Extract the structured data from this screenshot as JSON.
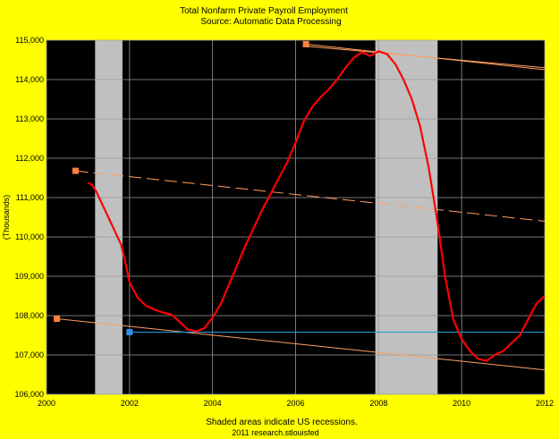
{
  "chart_data": {
    "type": "line",
    "title": "Total Nonfarm Private Payroll Employment",
    "subtitle": "Source: Automatic Data Processing",
    "ylabel": "(Thousands)",
    "xlabel": "",
    "footer_lines": [
      "Shaded areas indicate US recessions.",
      "2011 research.stlouisfed"
    ],
    "xlim": [
      2000,
      2012
    ],
    "ylim": [
      106000,
      115000
    ],
    "x_ticks": [
      2000,
      2002,
      2004,
      2006,
      2008,
      2010,
      2012
    ],
    "x_tick_labels": [
      "2000",
      "2002",
      "2004",
      "2006",
      "2008",
      "2010",
      "2012"
    ],
    "y_ticks": [
      106000,
      107000,
      108000,
      109000,
      110000,
      111000,
      112000,
      113000,
      114000,
      115000
    ],
    "y_tick_labels": [
      "106,000",
      "107,000",
      "108,000",
      "109,000",
      "110,000",
      "111,000",
      "112,000",
      "113,000",
      "114,000",
      "115,000"
    ],
    "grid": true,
    "plot_background": "#000000",
    "page_background": "#FFFF00",
    "recessions": [
      {
        "start": 2001.17,
        "end": 2001.83
      },
      {
        "start": 2007.92,
        "end": 2009.42
      }
    ],
    "recession_color": "#C0C0C0",
    "series": [
      {
        "color": "#FF0000",
        "points": [
          [
            2001.0,
            111380
          ],
          [
            2001.1,
            111320
          ],
          [
            2001.2,
            111150
          ],
          [
            2001.4,
            110700
          ],
          [
            2001.6,
            110250
          ],
          [
            2001.8,
            109800
          ],
          [
            2001.9,
            109350
          ],
          [
            2002.0,
            108850
          ],
          [
            2002.2,
            108450
          ],
          [
            2002.4,
            108250
          ],
          [
            2002.6,
            108150
          ],
          [
            2002.8,
            108080
          ],
          [
            2003.0,
            108030
          ],
          [
            2003.2,
            107850
          ],
          [
            2003.4,
            107650
          ],
          [
            2003.6,
            107600
          ],
          [
            2003.8,
            107680
          ],
          [
            2004.0,
            107950
          ],
          [
            2004.2,
            108300
          ],
          [
            2004.4,
            108800
          ],
          [
            2004.6,
            109300
          ],
          [
            2004.8,
            109800
          ],
          [
            2005.0,
            110250
          ],
          [
            2005.2,
            110700
          ],
          [
            2005.4,
            111100
          ],
          [
            2005.6,
            111500
          ],
          [
            2005.8,
            111900
          ],
          [
            2006.0,
            112400
          ],
          [
            2006.2,
            112950
          ],
          [
            2006.4,
            113300
          ],
          [
            2006.6,
            113550
          ],
          [
            2006.8,
            113750
          ],
          [
            2007.0,
            114000
          ],
          [
            2007.2,
            114300
          ],
          [
            2007.4,
            114550
          ],
          [
            2007.6,
            114700
          ],
          [
            2007.8,
            114600
          ],
          [
            2008.0,
            114720
          ],
          [
            2008.2,
            114650
          ],
          [
            2008.4,
            114400
          ],
          [
            2008.6,
            114000
          ],
          [
            2008.8,
            113500
          ],
          [
            2009.0,
            112800
          ],
          [
            2009.2,
            111800
          ],
          [
            2009.4,
            110500
          ],
          [
            2009.6,
            109000
          ],
          [
            2009.8,
            107900
          ],
          [
            2010.0,
            107400
          ],
          [
            2010.2,
            107100
          ],
          [
            2010.4,
            106900
          ],
          [
            2010.6,
            106850
          ],
          [
            2010.8,
            107000
          ],
          [
            2011.0,
            107100
          ],
          [
            2011.2,
            107300
          ],
          [
            2011.4,
            107500
          ],
          [
            2011.6,
            107900
          ],
          [
            2011.8,
            108300
          ],
          [
            2012.0,
            108500
          ]
        ]
      }
    ],
    "reference_lines": [
      {
        "color": "#FFA060",
        "style": "dash",
        "from": [
          2000.7,
          111680
        ],
        "to": [
          2012.0,
          110400
        ],
        "marker_x": 2000.7
      },
      {
        "color": "#FFA060",
        "style": "solid",
        "from": [
          2000.25,
          107920
        ],
        "to": [
          2012.0,
          106620
        ],
        "marker_x": 2000.25
      },
      {
        "color": "#FFA060",
        "style": "solid",
        "from": [
          2006.25,
          114900
        ],
        "to": [
          2012.0,
          114250
        ],
        "marker_x": 2006.25
      },
      {
        "color": "#FFA060",
        "style": "solid",
        "from": [
          2006.25,
          114850
        ],
        "to": [
          2012.0,
          114300
        ],
        "marker_x": null
      },
      {
        "color": "#20A0E0",
        "style": "solid",
        "from": [
          2002.0,
          107580
        ],
        "to": [
          2012.0,
          107580
        ],
        "marker_x": 2002.0
      }
    ]
  }
}
